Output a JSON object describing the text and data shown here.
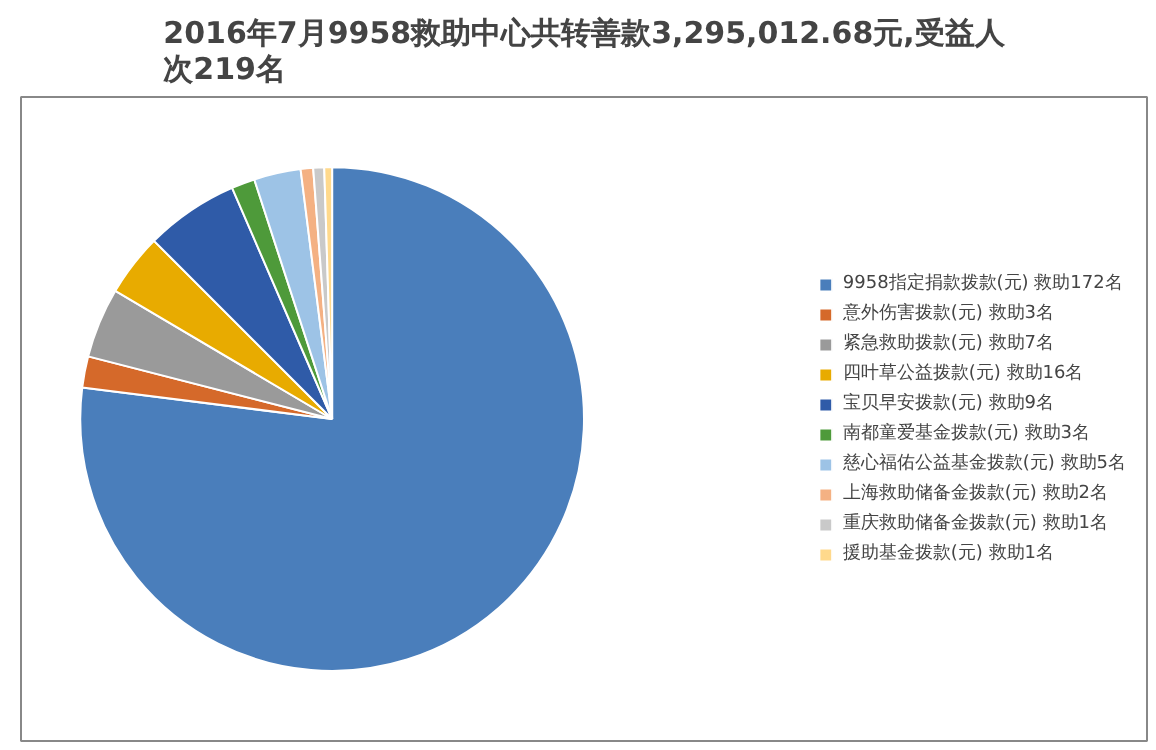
{
  "chart_data": {
    "type": "pie",
    "title": "2016年7月9958救助中心共转善款3,295,012.68元,受益人次219名",
    "categories": [
      "9958指定捐款拨款(元) 救助172名",
      "意外伤害拨款(元) 救助3名",
      "紧急救助拨款(元) 救助7名",
      "四叶草公益拨款(元) 救助16名",
      "宝贝早安拨款(元) 救助9名",
      "南都童爱基金拨款(元) 救助3名",
      "慈心福佑公益基金拨款(元) 救助5名",
      "上海救助储备金拨款(元) 救助2名",
      "重庆救助储备金拨款(元) 救助1名",
      "援助基金拨款(元) 救助1名"
    ],
    "values": [
      77,
      2,
      4.5,
      4,
      6,
      1.5,
      3,
      0.8,
      0.7,
      0.5
    ],
    "colors": [
      "#4a7ebb",
      "#d5692a",
      "#9a9a9a",
      "#e8ab00",
      "#2f5ba8",
      "#4e9a3a",
      "#9dc3e6",
      "#f4b183",
      "#c9c9c9",
      "#ffd98c"
    ],
    "legend": "right"
  }
}
